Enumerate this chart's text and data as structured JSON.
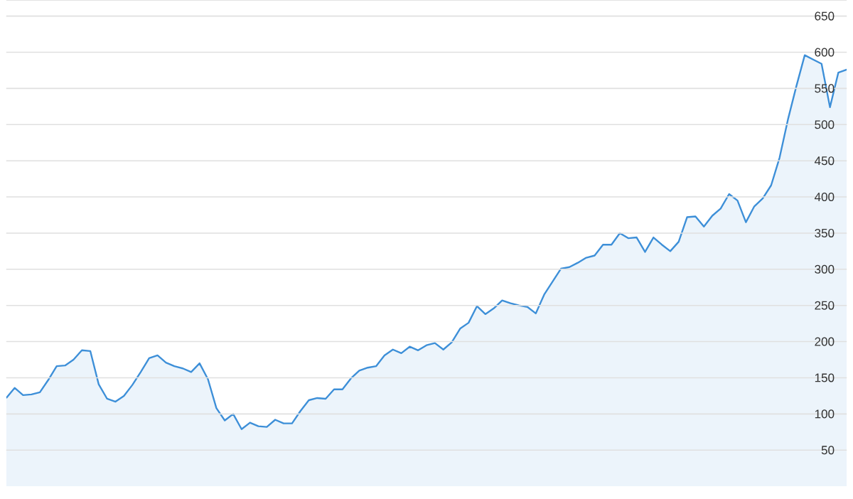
{
  "chart_data": {
    "type": "area",
    "categories": [
      null,
      null,
      null,
      null,
      null,
      null,
      null,
      null,
      null,
      null,
      null,
      null,
      null,
      null,
      null,
      null,
      null,
      null,
      null,
      null,
      null,
      null,
      null,
      null,
      null,
      null,
      null,
      null,
      null,
      null,
      null,
      null,
      null,
      null,
      null,
      null,
      null,
      null,
      null,
      null,
      null,
      null,
      null,
      null,
      null,
      null,
      null,
      null,
      null,
      null,
      null,
      null,
      null,
      null,
      null,
      null,
      null,
      null,
      null,
      null,
      null,
      null,
      null,
      null,
      null,
      null,
      null,
      null,
      null,
      null,
      null,
      null,
      null,
      null,
      null,
      null,
      null,
      null,
      null,
      null,
      null,
      null,
      null,
      null,
      null,
      null,
      null,
      null,
      null,
      null,
      null,
      null,
      null,
      null,
      null,
      null,
      null,
      null,
      null,
      null,
      null
    ],
    "series": [
      {
        "color": "#3d8fd8",
        "values": [
          122,
          136,
          126,
          127,
          130,
          147,
          166,
          167,
          175,
          188,
          187,
          141,
          121,
          117,
          125,
          140,
          158,
          177,
          181,
          171,
          166,
          163,
          158,
          170,
          148,
          108,
          91,
          100,
          79,
          88,
          83,
          82,
          92,
          87,
          87,
          104,
          119,
          122,
          121,
          134,
          134,
          149,
          160,
          164,
          166,
          181,
          189,
          184,
          193,
          188,
          195,
          198,
          189,
          199,
          218,
          226,
          249,
          238,
          246,
          257,
          253,
          250,
          248,
          239,
          265,
          283,
          301,
          303,
          309,
          316,
          319,
          334,
          334,
          350,
          343,
          344,
          324,
          344,
          334,
          325,
          338,
          372,
          373,
          359,
          374,
          384,
          404,
          395,
          365,
          387,
          398,
          416,
          454,
          507,
          553,
          596,
          590,
          584,
          524,
          572,
          576
        ]
      }
    ],
    "ylim": [
      0,
      672
    ],
    "yticks": [
      50,
      100,
      150,
      200,
      250,
      300,
      350,
      400,
      450,
      500,
      550,
      600,
      650
    ],
    "tick_labels": "y",
    "grid": "y",
    "marker": "none",
    "line_style": "solid"
  }
}
